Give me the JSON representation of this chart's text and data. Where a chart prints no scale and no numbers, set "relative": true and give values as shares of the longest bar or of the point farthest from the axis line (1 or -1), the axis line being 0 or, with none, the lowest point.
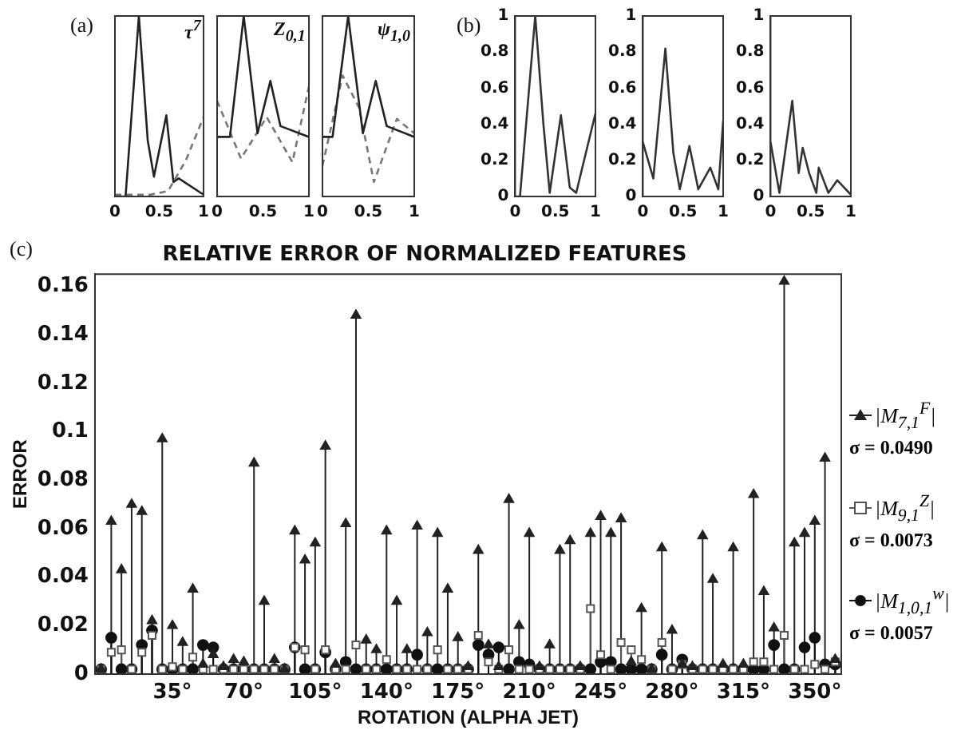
{
  "chart_data": [
    {
      "type": "line",
      "relative": true,
      "title": "τ$^{7}$",
      "annotations": [
        "(a)"
      ],
      "x": [
        0,
        0.12,
        0.27,
        0.37,
        0.44,
        0.58,
        0.66,
        0.72,
        1
      ],
      "xlim": [
        0,
        1
      ],
      "xticks": [
        0,
        0.5,
        1
      ],
      "tick_labels": "x",
      "series": [
        {
          "color": "#222222",
          "line_style": "solid",
          "values": [
            0,
            0,
            1,
            0.31,
            0.11,
            0.45,
            0.08,
            0.1,
            0.01
          ]
        },
        {
          "color": "#777777",
          "line_style": "dashed",
          "x": [
            0,
            0.4,
            0.6,
            0.8,
            1
          ],
          "values": [
            0.01,
            0.01,
            0.03,
            0.2,
            0.44
          ]
        }
      ]
    },
    {
      "type": "line",
      "relative": true,
      "title": "Z$_{0,1}$",
      "x": [
        0,
        0.14,
        0.29,
        0.44,
        0.58,
        0.69,
        1
      ],
      "xlim": [
        0,
        1
      ],
      "xticks": [
        0,
        0.5,
        1
      ],
      "tick_labels": "x",
      "series": [
        {
          "color": "#222222",
          "line_style": "solid",
          "values": [
            0.33,
            0.33,
            1,
            0.35,
            0.64,
            0.39,
            0.33
          ]
        },
        {
          "color": "#777777",
          "line_style": "dashed",
          "x": [
            0,
            0.26,
            0.54,
            0.82,
            1
          ],
          "values": [
            0.53,
            0.21,
            0.44,
            0.19,
            0.61
          ]
        }
      ]
    },
    {
      "type": "line",
      "relative": true,
      "title": "ψ$_{1,0}$",
      "x": [
        0,
        0.11,
        0.28,
        0.44,
        0.58,
        0.7,
        1
      ],
      "xlim": [
        0,
        1
      ],
      "xticks": [
        0,
        0.5,
        1
      ],
      "tick_labels": "x",
      "series": [
        {
          "color": "#222222",
          "line_style": "solid",
          "values": [
            0.33,
            0.33,
            1,
            0.35,
            0.64,
            0.39,
            0.33
          ]
        },
        {
          "color": "#777777",
          "line_style": "dashed",
          "x": [
            0,
            0.22,
            0.4,
            0.56,
            0.81,
            1
          ],
          "values": [
            0.17,
            0.67,
            0.49,
            0.08,
            0.43,
            0.35
          ]
        }
      ]
    },
    {
      "type": "line",
      "annotations": [
        "(b)"
      ],
      "x": [
        0,
        0.06,
        0.25,
        0.35,
        0.43,
        0.57,
        0.68,
        0.76,
        1
      ],
      "xlim": [
        0,
        1
      ],
      "xticks": [
        0,
        0.5,
        1
      ],
      "ylim": [
        0,
        1
      ],
      "yticks": [
        0,
        0.2,
        0.4,
        0.6,
        0.8,
        1
      ],
      "series": [
        {
          "color": "#333333",
          "line_style": "solid",
          "values": [
            0,
            0,
            1,
            0.41,
            0.02,
            0.45,
            0.05,
            0.02,
            0.46
          ]
        }
      ]
    },
    {
      "type": "line",
      "x": [
        0,
        0.13,
        0.28,
        0.38,
        0.46,
        0.58,
        0.69,
        0.84,
        0.94,
        1
      ],
      "xlim": [
        0,
        1
      ],
      "xticks": [
        0,
        0.5,
        1
      ],
      "ylim": [
        0,
        1
      ],
      "yticks": [
        0,
        0.2,
        0.4,
        0.6,
        0.8,
        1
      ],
      "series": [
        {
          "color": "#333333",
          "line_style": "solid",
          "values": [
            0.3,
            0.1,
            0.82,
            0.24,
            0.04,
            0.28,
            0.04,
            0.16,
            0.04,
            0.42
          ]
        }
      ]
    },
    {
      "type": "line",
      "x": [
        0,
        0.11,
        0.27,
        0.35,
        0.4,
        0.48,
        0.57,
        0.6,
        0.72,
        0.83,
        1
      ],
      "xlim": [
        0,
        1
      ],
      "xticks": [
        0,
        0.5,
        1
      ],
      "ylim": [
        0,
        1
      ],
      "yticks": [
        0,
        0.2,
        0.4,
        0.6,
        0.8,
        1
      ],
      "series": [
        {
          "color": "#333333",
          "line_style": "solid",
          "values": [
            0.3,
            0.02,
            0.53,
            0.13,
            0.27,
            0.13,
            0.02,
            0.16,
            0.02,
            0.09,
            0.01
          ]
        }
      ]
    },
    {
      "type": "lollipop",
      "title": "RELATIVE ERROR OF NORMALIZED FEATURES",
      "xlabel": "ROTATION (ALPHA JET)",
      "ylabel": "ERROR",
      "legend": "right",
      "annotations": [
        "(c)",
        "σ = 0.0490",
        "σ = 0.0073",
        "σ = 0.0057"
      ],
      "x": [
        0,
        5,
        10,
        15,
        20,
        25,
        30,
        35,
        40,
        45,
        50,
        55,
        60,
        65,
        70,
        75,
        80,
        85,
        90,
        95,
        100,
        105,
        110,
        115,
        120,
        125,
        130,
        135,
        140,
        145,
        150,
        155,
        160,
        165,
        170,
        175,
        180,
        185,
        190,
        195,
        200,
        205,
        210,
        215,
        220,
        225,
        230,
        235,
        240,
        245,
        250,
        255,
        260,
        265,
        270,
        275,
        280,
        285,
        290,
        295,
        300,
        305,
        310,
        315,
        320,
        325,
        330,
        335,
        340,
        345,
        350,
        355,
        360
      ],
      "xlim": [
        -3,
        363
      ],
      "xticks": [
        {
          "value": 35,
          "label": "35°"
        },
        {
          "value": 70,
          "label": "70°"
        },
        {
          "value": 105,
          "label": "105°"
        },
        {
          "value": 140,
          "label": "140°"
        },
        {
          "value": 175,
          "label": "175°"
        },
        {
          "value": 210,
          "label": "210°"
        },
        {
          "value": 245,
          "label": "245°"
        },
        {
          "value": 280,
          "label": "280°"
        },
        {
          "value": 315,
          "label": "315°"
        },
        {
          "value": 350,
          "label": "350°"
        }
      ],
      "ylim": [
        0,
        0.165
      ],
      "yticks": [
        0,
        0.02,
        0.04,
        0.06,
        0.08,
        0.1,
        0.12,
        0.14,
        0.16
      ],
      "series": [
        {
          "name": "|M$_{7,1}$$^{F}$|",
          "color": "#222222",
          "marker": "triangle",
          "values": [
            0.002,
            0.063,
            0.043,
            0.07,
            0.067,
            0.022,
            0.097,
            0.02,
            0.013,
            0.035,
            0.004,
            0.008,
            0.003,
            0.006,
            0.005,
            0.087,
            0.03,
            0.006,
            0.002,
            0.059,
            0.047,
            0.054,
            0.094,
            0.004,
            0.062,
            0.148,
            0.014,
            0.01,
            0.059,
            0.03,
            0.01,
            0.061,
            0.017,
            0.058,
            0.035,
            0.015,
            0.003,
            0.051,
            0.012,
            0.003,
            0.072,
            0.02,
            0.058,
            0.003,
            0.012,
            0.051,
            0.055,
            0.003,
            0.058,
            0.065,
            0.058,
            0.064,
            0.005,
            0.027,
            0.002,
            0.052,
            0.018,
            0.004,
            0.003,
            0.057,
            0.039,
            0.004,
            0.052,
            0.004,
            0.074,
            0.034,
            0.019,
            0.162,
            0.054,
            0.058,
            0.063,
            0.089,
            0.006
          ]
        },
        {
          "name": "|M$_{9,1}$$^{Z}$|",
          "color": "#555555",
          "marker": "square",
          "values": [
            0.002,
            0.009,
            0.01,
            0.002,
            0.009,
            0.016,
            0.002,
            0.003,
            0.002,
            0.007,
            0.002,
            0.002,
            0.002,
            0.002,
            0.002,
            0.002,
            0.002,
            0.002,
            0.002,
            0.011,
            0.01,
            0.002,
            0.01,
            0.002,
            0.002,
            0.012,
            0.002,
            0.002,
            0.006,
            0.002,
            0.002,
            0.002,
            0.002,
            0.01,
            0.002,
            0.002,
            0.002,
            0.016,
            0.005,
            0.002,
            0.01,
            0.002,
            0.002,
            0.002,
            0.002,
            0.002,
            0.002,
            0.002,
            0.027,
            0.008,
            0.002,
            0.013,
            0.01,
            0.006,
            0.002,
            0.013,
            0.002,
            0.004,
            0.002,
            0.002,
            0.002,
            0.002,
            0.002,
            0.002,
            0.005,
            0.005,
            0.002,
            0.016,
            0.002,
            0.002,
            0.004,
            0.002,
            0.005
          ]
        },
        {
          "name": "|M$_{1,0,1}$$^{w}$|",
          "color": "#111111",
          "marker": "circle",
          "values": [
            0.002,
            0.015,
            0.002,
            0.002,
            0.012,
            0.018,
            0.002,
            0.002,
            0.002,
            0.002,
            0.012,
            0.011,
            0.002,
            0.002,
            0.002,
            0.002,
            0.002,
            0.002,
            0.002,
            0.011,
            0.002,
            0.002,
            0.009,
            0.002,
            0.005,
            0.002,
            0.002,
            0.002,
            0.002,
            0.002,
            0.002,
            0.008,
            0.002,
            0.002,
            0.002,
            0.002,
            0.002,
            0.012,
            0.008,
            0.011,
            0.002,
            0.005,
            0.004,
            0.002,
            0.002,
            0.002,
            0.002,
            0.002,
            0.002,
            0.005,
            0.005,
            0.002,
            0.002,
            0.002,
            0.002,
            0.008,
            0.002,
            0.006,
            0.002,
            0.002,
            0.002,
            0.002,
            0.002,
            0.002,
            0.002,
            0.002,
            0.012,
            0.002,
            0.002,
            0.011,
            0.015,
            0.004,
            0.004
          ]
        }
      ]
    }
  ]
}
